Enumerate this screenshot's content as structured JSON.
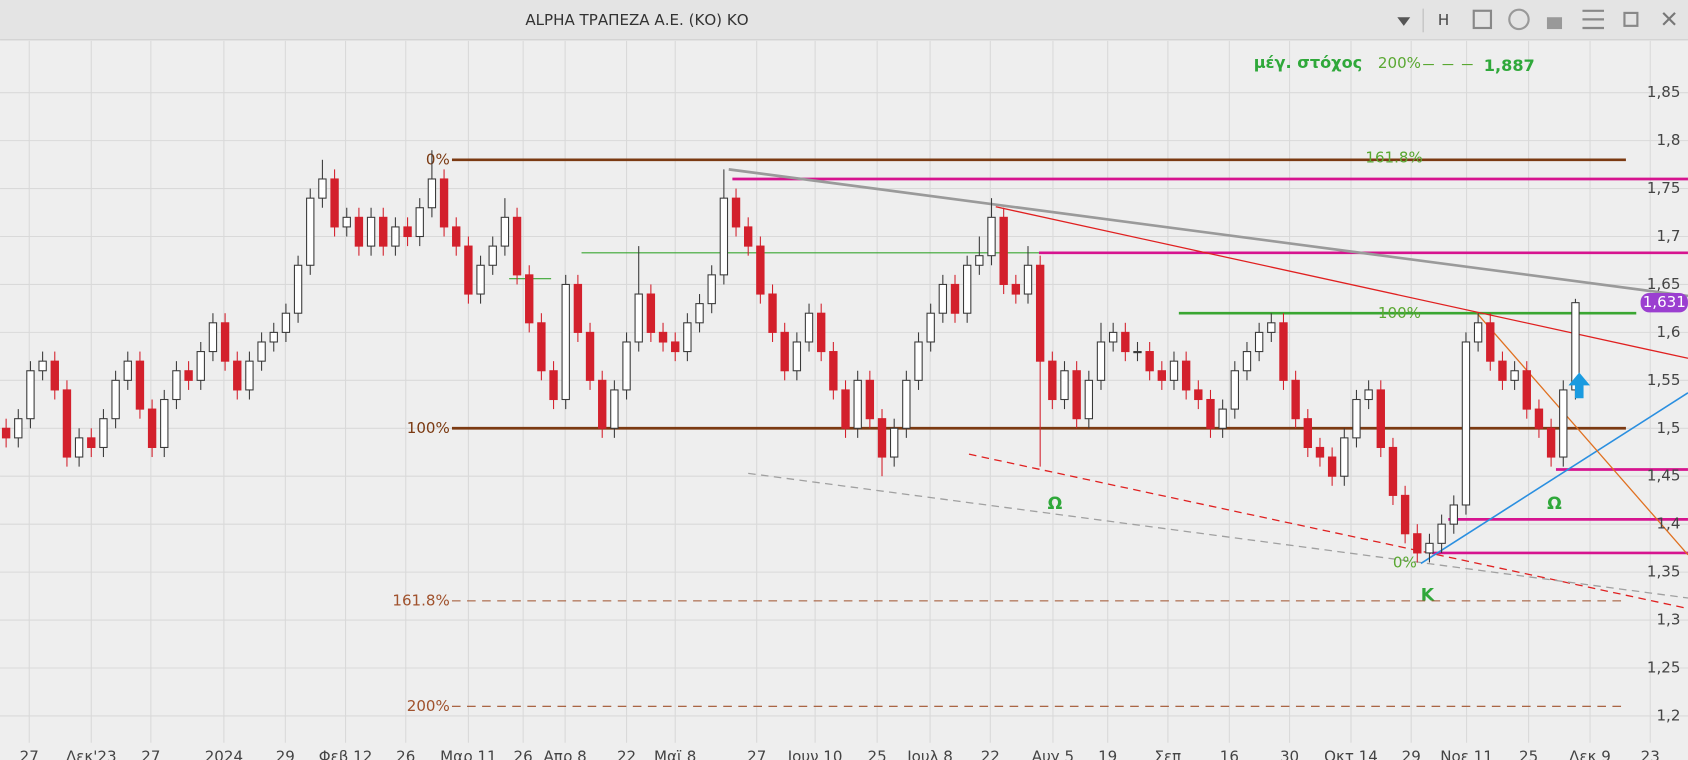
{
  "window": {
    "title": "ALPHA ΤΡΑΠΕΖΑ Α.Ε. (ΚΟ) ΚΟ",
    "button": "H"
  },
  "chart_data": {
    "type": "candlestick",
    "up_color": "#3a3a3a",
    "down_color": "#d3202c",
    "grid": true,
    "xlim": [
      0,
      277.5
    ],
    "xticks": [
      {
        "value": 4.8,
        "label": "27"
      },
      {
        "value": 15.0,
        "label": "Δεκ'23"
      },
      {
        "value": 24.8,
        "label": "27"
      },
      {
        "value": 36.8,
        "label": "2024"
      },
      {
        "value": 46.9,
        "label": "29"
      },
      {
        "value": 56.8,
        "label": "Φεβ 12"
      },
      {
        "value": 66.7,
        "label": "26"
      },
      {
        "value": 77.0,
        "label": "Μαρ 11"
      },
      {
        "value": 86.0,
        "label": "26"
      },
      {
        "value": 92.9,
        "label": "Απρ 8"
      },
      {
        "value": 103.0,
        "label": "22"
      },
      {
        "value": 111.0,
        "label": "Μαϊ 8"
      },
      {
        "value": 124.4,
        "label": "27"
      },
      {
        "value": 134.0,
        "label": "Ιουν 10"
      },
      {
        "value": 144.2,
        "label": "25"
      },
      {
        "value": 152.9,
        "label": "Ιουλ 8"
      },
      {
        "value": 162.8,
        "label": "22"
      },
      {
        "value": 173.1,
        "label": "Αυγ 5"
      },
      {
        "value": 182.1,
        "label": "19"
      },
      {
        "value": 192.0,
        "label": "Σεπ"
      },
      {
        "value": 202.1,
        "label": "16"
      },
      {
        "value": 212.0,
        "label": "30"
      },
      {
        "value": 222.1,
        "label": "Οκτ 14"
      },
      {
        "value": 232.0,
        "label": "29"
      },
      {
        "value": 241.1,
        "label": "Νοε 11"
      },
      {
        "value": 251.3,
        "label": "25"
      },
      {
        "value": 261.4,
        "label": "Δεκ 9"
      },
      {
        "value": 271.3,
        "label": "23"
      }
    ],
    "ylim": [
      1.172,
      1.904
    ],
    "yticks": [
      {
        "value": 1.2,
        "label": "1,2"
      },
      {
        "value": 1.25,
        "label": "1,25"
      },
      {
        "value": 1.3,
        "label": "1,3"
      },
      {
        "value": 1.35,
        "label": "1,35"
      },
      {
        "value": 1.4,
        "label": "1,4"
      },
      {
        "value": 1.45,
        "label": "1,45"
      },
      {
        "value": 1.5,
        "label": "1,5"
      },
      {
        "value": 1.55,
        "label": "1,55"
      },
      {
        "value": 1.6,
        "label": "1,6"
      },
      {
        "value": 1.65,
        "label": "1,65"
      },
      {
        "value": 1.7,
        "label": "1,7"
      },
      {
        "value": 1.75,
        "label": "1,75"
      },
      {
        "value": 1.8,
        "label": "1,8"
      },
      {
        "value": 1.85,
        "label": "1,85"
      }
    ],
    "x": [
      1,
      3,
      5,
      7,
      9,
      11,
      13,
      15,
      17,
      19,
      21,
      23,
      25,
      27,
      29,
      31,
      33,
      35,
      37,
      39,
      41,
      43,
      45,
      47,
      49,
      51,
      53,
      55,
      57,
      59,
      61,
      63,
      65,
      67,
      69,
      71,
      73,
      75,
      77,
      79,
      81,
      83,
      85,
      87,
      89,
      91,
      93,
      95,
      97,
      99,
      101,
      103,
      105,
      107,
      109,
      111,
      113,
      115,
      117,
      119,
      121,
      123,
      125,
      127,
      129,
      131,
      133,
      135,
      137,
      139,
      141,
      143,
      145,
      147,
      149,
      151,
      153,
      155,
      157,
      159,
      161,
      163,
      165,
      167,
      169,
      171,
      173,
      175,
      177,
      179,
      181,
      183,
      185,
      187,
      189,
      191,
      193,
      195,
      197,
      199,
      201,
      203,
      205,
      207,
      209,
      211,
      213,
      215,
      217,
      219,
      221,
      223,
      225,
      227,
      229,
      231,
      233,
      235,
      237,
      239,
      241,
      243,
      245,
      247,
      249,
      251,
      253,
      255,
      257,
      259
    ],
    "open": [
      1.5,
      1.49,
      1.51,
      1.56,
      1.57,
      1.54,
      1.47,
      1.49,
      1.48,
      1.51,
      1.55,
      1.57,
      1.52,
      1.48,
      1.53,
      1.56,
      1.55,
      1.58,
      1.61,
      1.57,
      1.54,
      1.57,
      1.59,
      1.6,
      1.62,
      1.67,
      1.74,
      1.76,
      1.71,
      1.72,
      1.69,
      1.72,
      1.69,
      1.71,
      1.7,
      1.73,
      1.76,
      1.71,
      1.69,
      1.64,
      1.67,
      1.69,
      1.72,
      1.66,
      1.61,
      1.56,
      1.53,
      1.65,
      1.6,
      1.55,
      1.5,
      1.54,
      1.59,
      1.64,
      1.6,
      1.59,
      1.58,
      1.61,
      1.63,
      1.66,
      1.74,
      1.71,
      1.69,
      1.64,
      1.6,
      1.56,
      1.59,
      1.62,
      1.58,
      1.54,
      1.5,
      1.55,
      1.51,
      1.47,
      1.5,
      1.55,
      1.59,
      1.62,
      1.65,
      1.62,
      1.67,
      1.68,
      1.72,
      1.65,
      1.64,
      1.67,
      1.57,
      1.53,
      1.56,
      1.51,
      1.55,
      1.59,
      1.6,
      1.58,
      1.58,
      1.56,
      1.55,
      1.57,
      1.54,
      1.53,
      1.5,
      1.52,
      1.56,
      1.58,
      1.6,
      1.61,
      1.55,
      1.51,
      1.48,
      1.47,
      1.45,
      1.49,
      1.53,
      1.54,
      1.48,
      1.43,
      1.39,
      1.37,
      1.38,
      1.4,
      1.42,
      1.59,
      1.61,
      1.57,
      1.55,
      1.56,
      1.52,
      1.5,
      1.47,
      1.54
    ],
    "high": [
      1.51,
      1.52,
      1.57,
      1.58,
      1.58,
      1.55,
      1.5,
      1.5,
      1.52,
      1.56,
      1.58,
      1.58,
      1.53,
      1.54,
      1.57,
      1.57,
      1.59,
      1.62,
      1.62,
      1.58,
      1.58,
      1.6,
      1.61,
      1.63,
      1.68,
      1.75,
      1.78,
      1.77,
      1.73,
      1.73,
      1.73,
      1.73,
      1.72,
      1.72,
      1.74,
      1.79,
      1.77,
      1.72,
      1.7,
      1.68,
      1.7,
      1.74,
      1.73,
      1.67,
      1.62,
      1.57,
      1.66,
      1.66,
      1.61,
      1.56,
      1.55,
      1.6,
      1.69,
      1.65,
      1.61,
      1.6,
      1.62,
      1.64,
      1.67,
      1.77,
      1.75,
      1.72,
      1.7,
      1.65,
      1.61,
      1.6,
      1.63,
      1.63,
      1.59,
      1.55,
      1.56,
      1.56,
      1.52,
      1.51,
      1.56,
      1.6,
      1.63,
      1.66,
      1.66,
      1.68,
      1.7,
      1.74,
      1.73,
      1.66,
      1.69,
      1.68,
      1.58,
      1.57,
      1.57,
      1.56,
      1.61,
      1.61,
      1.61,
      1.59,
      1.59,
      1.57,
      1.58,
      1.58,
      1.55,
      1.54,
      1.53,
      1.57,
      1.59,
      1.61,
      1.62,
      1.62,
      1.56,
      1.52,
      1.49,
      1.48,
      1.5,
      1.54,
      1.55,
      1.55,
      1.49,
      1.44,
      1.4,
      1.39,
      1.41,
      1.43,
      1.6,
      1.62,
      1.62,
      1.58,
      1.57,
      1.57,
      1.53,
      1.51,
      1.55,
      1.635
    ],
    "low": [
      1.48,
      1.48,
      1.5,
      1.55,
      1.53,
      1.46,
      1.46,
      1.47,
      1.47,
      1.5,
      1.54,
      1.51,
      1.47,
      1.47,
      1.52,
      1.54,
      1.54,
      1.57,
      1.56,
      1.53,
      1.53,
      1.56,
      1.58,
      1.59,
      1.61,
      1.66,
      1.73,
      1.7,
      1.7,
      1.68,
      1.68,
      1.68,
      1.68,
      1.69,
      1.69,
      1.72,
      1.7,
      1.68,
      1.63,
      1.63,
      1.66,
      1.68,
      1.65,
      1.6,
      1.55,
      1.52,
      1.52,
      1.59,
      1.54,
      1.49,
      1.49,
      1.53,
      1.58,
      1.59,
      1.58,
      1.57,
      1.57,
      1.6,
      1.62,
      1.65,
      1.7,
      1.68,
      1.63,
      1.59,
      1.55,
      1.55,
      1.58,
      1.57,
      1.53,
      1.49,
      1.49,
      1.5,
      1.45,
      1.46,
      1.49,
      1.54,
      1.58,
      1.61,
      1.61,
      1.61,
      1.66,
      1.67,
      1.64,
      1.63,
      1.63,
      1.46,
      1.52,
      1.52,
      1.5,
      1.5,
      1.54,
      1.58,
      1.57,
      1.57,
      1.55,
      1.54,
      1.54,
      1.53,
      1.52,
      1.49,
      1.49,
      1.51,
      1.55,
      1.57,
      1.59,
      1.54,
      1.5,
      1.47,
      1.46,
      1.44,
      1.44,
      1.48,
      1.52,
      1.47,
      1.42,
      1.38,
      1.36,
      1.36,
      1.37,
      1.39,
      1.41,
      1.58,
      1.56,
      1.54,
      1.54,
      1.51,
      1.49,
      1.46,
      1.46,
      1.53
    ],
    "close": [
      1.49,
      1.51,
      1.56,
      1.57,
      1.54,
      1.47,
      1.49,
      1.48,
      1.51,
      1.55,
      1.57,
      1.52,
      1.48,
      1.53,
      1.56,
      1.55,
      1.58,
      1.61,
      1.57,
      1.54,
      1.57,
      1.59,
      1.6,
      1.62,
      1.67,
      1.74,
      1.76,
      1.71,
      1.72,
      1.69,
      1.72,
      1.69,
      1.71,
      1.7,
      1.73,
      1.76,
      1.71,
      1.69,
      1.64,
      1.67,
      1.69,
      1.72,
      1.66,
      1.61,
      1.56,
      1.53,
      1.65,
      1.6,
      1.55,
      1.5,
      1.54,
      1.59,
      1.64,
      1.6,
      1.59,
      1.58,
      1.61,
      1.63,
      1.66,
      1.74,
      1.71,
      1.69,
      1.64,
      1.6,
      1.56,
      1.59,
      1.62,
      1.58,
      1.54,
      1.5,
      1.55,
      1.51,
      1.47,
      1.5,
      1.55,
      1.59,
      1.62,
      1.65,
      1.62,
      1.67,
      1.68,
      1.72,
      1.65,
      1.64,
      1.67,
      1.57,
      1.53,
      1.56,
      1.51,
      1.55,
      1.59,
      1.6,
      1.58,
      1.58,
      1.56,
      1.55,
      1.57,
      1.54,
      1.53,
      1.5,
      1.52,
      1.56,
      1.58,
      1.6,
      1.61,
      1.55,
      1.51,
      1.48,
      1.47,
      1.45,
      1.49,
      1.53,
      1.54,
      1.48,
      1.43,
      1.39,
      1.37,
      1.38,
      1.4,
      1.42,
      1.59,
      1.61,
      1.57,
      1.55,
      1.56,
      1.52,
      1.5,
      1.47,
      1.54,
      1.631
    ],
    "last_price": {
      "value": 1.631,
      "label": "1,631",
      "color": "#9b3fd0"
    },
    "hlines": [
      {
        "value": 1.78,
        "x": [
          74.3,
          267.3
        ],
        "color": "#7b3a12",
        "width": 2.5,
        "dash": false,
        "label": "0%",
        "label_side": "left"
      },
      {
        "value": 1.5,
        "x": [
          74.3,
          267.3
        ],
        "color": "#7b3a12",
        "width": 2.5,
        "dash": false,
        "label": "100%",
        "label_side": "left"
      },
      {
        "value": 1.32,
        "x": [
          74.3,
          267.3
        ],
        "color": "#a0522d",
        "width": 1,
        "dash": true,
        "label": "161.8%",
        "label_side": "left"
      },
      {
        "value": 1.21,
        "x": [
          74.3,
          267.3
        ],
        "color": "#a0522d",
        "width": 1,
        "dash": true,
        "label": "200%",
        "label_side": "left"
      },
      {
        "value": 1.76,
        "x": [
          120.4,
          277.5
        ],
        "color": "#d6148f",
        "width": 2.5,
        "dash": false
      },
      {
        "value": 1.683,
        "x": [
          170.8,
          277.5
        ],
        "color": "#d6148f",
        "width": 2.5,
        "dash": false
      },
      {
        "value": 1.457,
        "x": [
          255.8,
          277.5
        ],
        "color": "#d6148f",
        "width": 2.5,
        "dash": false
      },
      {
        "value": 1.405,
        "x": [
          238.1,
          277.5
        ],
        "color": "#d6148f",
        "width": 2.5,
        "dash": false
      },
      {
        "value": 1.37,
        "x": [
          235.4,
          277.5
        ],
        "color": "#d6148f",
        "width": 2.5,
        "dash": false
      },
      {
        "value": 1.62,
        "x": [
          193.8,
          269.0
        ],
        "color": "#3aa632",
        "width": 2.5,
        "dash": false
      },
      {
        "value": 1.683,
        "x": [
          95.6,
          170.8
        ],
        "color": "#3aa632",
        "width": 1,
        "dash": false
      },
      {
        "value": 1.656,
        "x": [
          83.7,
          90.6
        ],
        "color": "#3aa632",
        "width": 1,
        "dash": false
      }
    ],
    "trendlines": [
      {
        "x": [
          119.8,
          277.5
        ],
        "y": [
          1.77,
          1.638
        ],
        "color": "#9a9a9a",
        "width": 2.5,
        "dash": false
      },
      {
        "x": [
          163.7,
          277.5
        ],
        "y": [
          1.731,
          1.573
        ],
        "color": "#e02020",
        "width": 1.2,
        "dash": false
      },
      {
        "x": [
          159.3,
          277.5
        ],
        "y": [
          1.473,
          1.312
        ],
        "color": "#e02020",
        "width": 1.2,
        "dash": true
      },
      {
        "x": [
          123.0,
          277.5
        ],
        "y": [
          1.453,
          1.323
        ],
        "color": "#a0a0a0",
        "width": 1.2,
        "dash": true
      },
      {
        "x": [
          233.6,
          277.5
        ],
        "y": [
          1.359,
          1.537
        ],
        "color": "#2a8fe0",
        "width": 1.5,
        "dash": false
      },
      {
        "x": [
          242.8,
          277.5
        ],
        "y": [
          1.62,
          1.368
        ],
        "color": "#e07020",
        "width": 1.2,
        "dash": false
      }
    ],
    "fib_labels": [
      "161.8%",
      "100%",
      "0%"
    ],
    "markers": [
      "Ω",
      "Ω",
      "Κ"
    ],
    "target": {
      "label": "μέγ. στόχος",
      "level": "200%",
      "value_label": "1,887"
    }
  }
}
